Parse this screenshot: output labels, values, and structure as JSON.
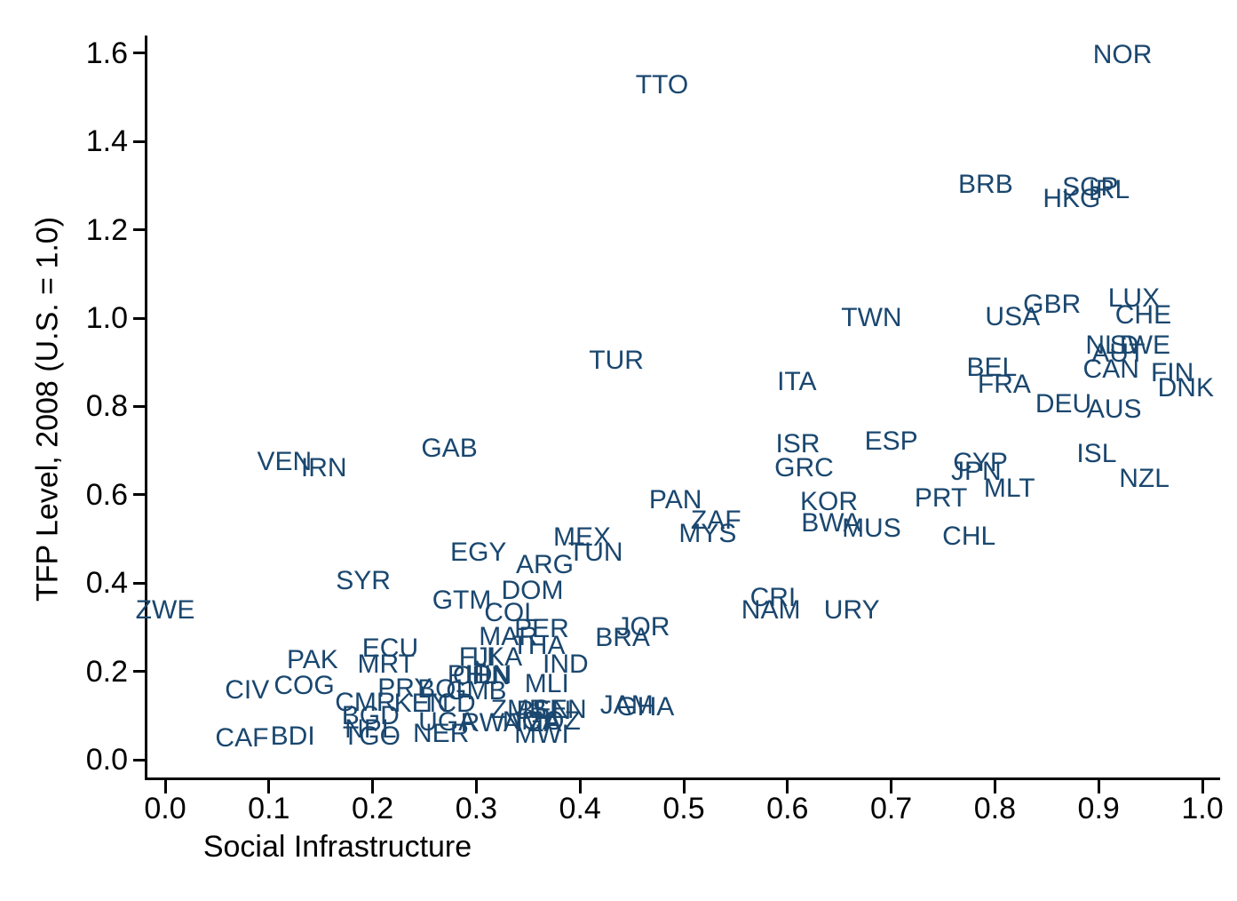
{
  "figure": {
    "background_color": "#ffffff",
    "label_color": "#1A476F",
    "axis_color": "#000000"
  },
  "chart_data": {
    "type": "scatter",
    "title": "",
    "xlabel": "Social Infrastructure",
    "ylabel": "TFP Level, 2008 (U.S. = 1.0)",
    "xlim": [
      0.0,
      1.0
    ],
    "ylim": [
      0.0,
      1.6
    ],
    "x_ticks": [
      0.0,
      0.1,
      0.2,
      0.3,
      0.4,
      0.5,
      0.6,
      0.7,
      0.8,
      0.9,
      1.0
    ],
    "y_ticks": [
      0.0,
      0.2,
      0.4,
      0.6,
      0.8,
      1.0,
      1.2,
      1.4,
      1.6
    ],
    "grid": "off",
    "legend": "none",
    "marker_style": "country-code-text-label",
    "label_color": "#1A476F",
    "points": [
      {
        "code": "NOR",
        "x": 0.923,
        "y": 1.596
      },
      {
        "code": "TTO",
        "x": 0.479,
        "y": 1.527
      },
      {
        "code": "BRB",
        "x": 0.791,
        "y": 1.302
      },
      {
        "code": "SGP",
        "x": 0.892,
        "y": 1.296
      },
      {
        "code": "IRL",
        "x": 0.91,
        "y": 1.29
      },
      {
        "code": "HKG",
        "x": 0.874,
        "y": 1.27
      },
      {
        "code": "LUX",
        "x": 0.934,
        "y": 1.044
      },
      {
        "code": "GBR",
        "x": 0.855,
        "y": 1.03
      },
      {
        "code": "CHE",
        "x": 0.943,
        "y": 1.006
      },
      {
        "code": "USA",
        "x": 0.817,
        "y": 1.002
      },
      {
        "code": "TWN",
        "x": 0.681,
        "y": 1.0
      },
      {
        "code": "NLD",
        "x": 0.913,
        "y": 0.938
      },
      {
        "code": "SWE",
        "x": 0.94,
        "y": 0.938
      },
      {
        "code": "AUT",
        "x": 0.919,
        "y": 0.919
      },
      {
        "code": "CAN",
        "x": 0.912,
        "y": 0.883
      },
      {
        "code": "FIN",
        "x": 0.971,
        "y": 0.875
      },
      {
        "code": "DNK",
        "x": 0.984,
        "y": 0.841
      },
      {
        "code": "BEL",
        "x": 0.797,
        "y": 0.887
      },
      {
        "code": "FRA",
        "x": 0.809,
        "y": 0.849
      },
      {
        "code": "ITA",
        "x": 0.609,
        "y": 0.855
      },
      {
        "code": "TUR",
        "x": 0.435,
        "y": 0.903
      },
      {
        "code": "DEU",
        "x": 0.866,
        "y": 0.805
      },
      {
        "code": "AUS",
        "x": 0.915,
        "y": 0.793
      },
      {
        "code": "ESP",
        "x": 0.7,
        "y": 0.72
      },
      {
        "code": "ISR",
        "x": 0.61,
        "y": 0.714
      },
      {
        "code": "GRC",
        "x": 0.616,
        "y": 0.66
      },
      {
        "code": "ISL",
        "x": 0.898,
        "y": 0.692
      },
      {
        "code": "CYP",
        "x": 0.786,
        "y": 0.672
      },
      {
        "code": "JPN",
        "x": 0.782,
        "y": 0.652
      },
      {
        "code": "NZL",
        "x": 0.944,
        "y": 0.636
      },
      {
        "code": "MLT",
        "x": 0.814,
        "y": 0.614
      },
      {
        "code": "PRT",
        "x": 0.748,
        "y": 0.592
      },
      {
        "code": "CHL",
        "x": 0.775,
        "y": 0.505
      },
      {
        "code": "KOR",
        "x": 0.64,
        "y": 0.583
      },
      {
        "code": "BWA",
        "x": 0.642,
        "y": 0.535
      },
      {
        "code": "MUS",
        "x": 0.681,
        "y": 0.523
      },
      {
        "code": "PAN",
        "x": 0.492,
        "y": 0.587
      },
      {
        "code": "ZAF",
        "x": 0.531,
        "y": 0.541
      },
      {
        "code": "MYS",
        "x": 0.523,
        "y": 0.511
      },
      {
        "code": "GAB",
        "x": 0.274,
        "y": 0.704
      },
      {
        "code": "VEN",
        "x": 0.115,
        "y": 0.674
      },
      {
        "code": "IRN",
        "x": 0.153,
        "y": 0.66
      },
      {
        "code": "MEX",
        "x": 0.402,
        "y": 0.503
      },
      {
        "code": "TUN",
        "x": 0.415,
        "y": 0.469
      },
      {
        "code": "EGY",
        "x": 0.302,
        "y": 0.469
      },
      {
        "code": "ARG",
        "x": 0.366,
        "y": 0.441
      },
      {
        "code": "SYR",
        "x": 0.191,
        "y": 0.404
      },
      {
        "code": "DOM",
        "x": 0.354,
        "y": 0.382
      },
      {
        "code": "GTM",
        "x": 0.286,
        "y": 0.36
      },
      {
        "code": "COL",
        "x": 0.334,
        "y": 0.332
      },
      {
        "code": "ZWE",
        "x": 0.0,
        "y": 0.338
      },
      {
        "code": "CRI",
        "x": 0.586,
        "y": 0.366
      },
      {
        "code": "NAM",
        "x": 0.584,
        "y": 0.338
      },
      {
        "code": "URY",
        "x": 0.662,
        "y": 0.338
      },
      {
        "code": "PER",
        "x": 0.363,
        "y": 0.296
      },
      {
        "code": "MAR",
        "x": 0.331,
        "y": 0.278
      },
      {
        "code": "JOR",
        "x": 0.461,
        "y": 0.3
      },
      {
        "code": "BRA",
        "x": 0.441,
        "y": 0.276
      },
      {
        "code": "THA",
        "x": 0.36,
        "y": 0.258
      },
      {
        "code": "FJI",
        "x": 0.301,
        "y": 0.231
      },
      {
        "code": "LKA",
        "x": 0.32,
        "y": 0.231
      },
      {
        "code": "IND",
        "x": 0.386,
        "y": 0.215
      },
      {
        "code": "ECU",
        "x": 0.217,
        "y": 0.252
      },
      {
        "code": "MRT",
        "x": 0.213,
        "y": 0.215
      },
      {
        "code": "PAK",
        "x": 0.142,
        "y": 0.225
      },
      {
        "code": "MLI",
        "x": 0.368,
        "y": 0.171
      },
      {
        "code": "CIV",
        "x": 0.079,
        "y": 0.157
      },
      {
        "code": "COG",
        "x": 0.134,
        "y": 0.167
      },
      {
        "code": "PHL",
        "x": 0.297,
        "y": 0.191
      },
      {
        "code": "CHN",
        "x": 0.305,
        "y": 0.189
      },
      {
        "code": "IDN",
        "x": 0.312,
        "y": 0.191
      },
      {
        "code": "BOL",
        "x": 0.269,
        "y": 0.159
      },
      {
        "code": "GMB",
        "x": 0.3,
        "y": 0.155
      },
      {
        "code": "PRY",
        "x": 0.231,
        "y": 0.161
      },
      {
        "code": "CMR",
        "x": 0.193,
        "y": 0.129
      },
      {
        "code": "KEN",
        "x": 0.247,
        "y": 0.127
      },
      {
        "code": "TCD",
        "x": 0.273,
        "y": 0.127
      },
      {
        "code": "BGD",
        "x": 0.198,
        "y": 0.099
      },
      {
        "code": "UGA",
        "x": 0.272,
        "y": 0.085
      },
      {
        "code": "NPL",
        "x": 0.198,
        "y": 0.068
      },
      {
        "code": "TGO",
        "x": 0.199,
        "y": 0.052
      },
      {
        "code": "NER",
        "x": 0.266,
        "y": 0.058
      },
      {
        "code": "RWA",
        "x": 0.314,
        "y": 0.082
      },
      {
        "code": "JAM",
        "x": 0.445,
        "y": 0.123
      },
      {
        "code": "GHA",
        "x": 0.463,
        "y": 0.119
      },
      {
        "code": "ZMB",
        "x": 0.341,
        "y": 0.113
      },
      {
        "code": "BEN",
        "x": 0.365,
        "y": 0.111
      },
      {
        "code": "SEN",
        "x": 0.38,
        "y": 0.113
      },
      {
        "code": "NGA",
        "x": 0.353,
        "y": 0.087
      },
      {
        "code": "MOZ",
        "x": 0.372,
        "y": 0.087
      },
      {
        "code": "TZA",
        "x": 0.358,
        "y": 0.082
      },
      {
        "code": "MWI",
        "x": 0.363,
        "y": 0.056
      },
      {
        "code": "CAF",
        "x": 0.074,
        "y": 0.048
      },
      {
        "code": "BDI",
        "x": 0.123,
        "y": 0.052
      }
    ]
  }
}
